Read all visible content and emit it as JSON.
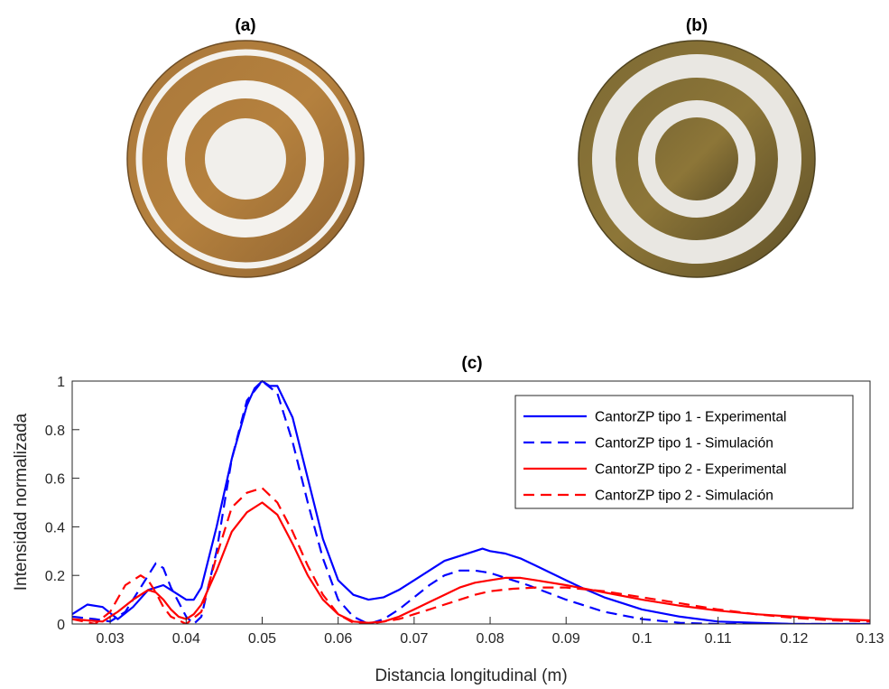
{
  "panels": {
    "a": "(a)",
    "b": "(b)",
    "c": "(c)"
  },
  "photos": [
    {
      "name": "CantorZP tipo 1",
      "metal": "copper",
      "center_open": true
    },
    {
      "name": "CantorZP tipo 2",
      "metal": "brass",
      "center_open": false
    }
  ],
  "chart_data": {
    "type": "line",
    "title": "(c)",
    "xlabel": "Distancia longitudinal (m)",
    "ylabel": "Intensidad normalizada",
    "xlim": [
      0.025,
      0.13
    ],
    "ylim": [
      0,
      1
    ],
    "xticks": [
      "0.03",
      "0.04",
      "0.05",
      "0.06",
      "0.07",
      "0.08",
      "0.09",
      "0.1",
      "0.11",
      "0.12",
      "0.13"
    ],
    "yticks": [
      "0",
      "0.2",
      "0.4",
      "0.6",
      "0.8",
      "1"
    ],
    "grid": false,
    "legend_position": "top-right",
    "series": [
      {
        "name": "CantorZP tipo 1 - Experimental",
        "color": "#0000ff",
        "dash": "solid",
        "x": [
          0.025,
          0.027,
          0.029,
          0.031,
          0.033,
          0.035,
          0.037,
          0.038,
          0.04,
          0.041,
          0.042,
          0.044,
          0.046,
          0.048,
          0.049,
          0.05,
          0.051,
          0.052,
          0.054,
          0.056,
          0.058,
          0.06,
          0.062,
          0.064,
          0.066,
          0.068,
          0.07,
          0.072,
          0.074,
          0.076,
          0.078,
          0.079,
          0.08,
          0.082,
          0.084,
          0.086,
          0.088,
          0.09,
          0.092,
          0.095,
          0.1,
          0.105,
          0.11,
          0.115,
          0.12,
          0.125,
          0.13
        ],
        "y": [
          0.04,
          0.08,
          0.07,
          0.02,
          0.07,
          0.14,
          0.16,
          0.14,
          0.1,
          0.1,
          0.15,
          0.4,
          0.68,
          0.9,
          0.97,
          1.0,
          0.98,
          0.98,
          0.85,
          0.6,
          0.35,
          0.18,
          0.12,
          0.1,
          0.11,
          0.14,
          0.18,
          0.22,
          0.26,
          0.28,
          0.3,
          0.31,
          0.3,
          0.29,
          0.27,
          0.24,
          0.21,
          0.18,
          0.15,
          0.11,
          0.06,
          0.03,
          0.01,
          0.005,
          0.0,
          0.0,
          0.0
        ]
      },
      {
        "name": "CantorZP tipo 1 - Simulación",
        "color": "#0000ff",
        "dash": "dashed",
        "x": [
          0.025,
          0.028,
          0.03,
          0.032,
          0.034,
          0.036,
          0.037,
          0.038,
          0.04,
          0.041,
          0.042,
          0.044,
          0.046,
          0.048,
          0.05,
          0.052,
          0.054,
          0.056,
          0.058,
          0.06,
          0.062,
          0.064,
          0.066,
          0.068,
          0.07,
          0.072,
          0.074,
          0.076,
          0.078,
          0.08,
          0.082,
          0.085,
          0.09,
          0.095,
          0.1,
          0.105,
          0.11,
          0.12,
          0.13
        ],
        "y": [
          0.03,
          0.02,
          0.01,
          0.05,
          0.15,
          0.25,
          0.23,
          0.15,
          0.03,
          0.0,
          0.03,
          0.3,
          0.68,
          0.92,
          1.0,
          0.95,
          0.75,
          0.5,
          0.27,
          0.1,
          0.03,
          0.0,
          0.02,
          0.06,
          0.11,
          0.16,
          0.2,
          0.22,
          0.22,
          0.21,
          0.19,
          0.16,
          0.1,
          0.05,
          0.02,
          0.005,
          0.0,
          0.0,
          0.0
        ]
      },
      {
        "name": "CantorZP tipo 2 - Experimental",
        "color": "#ff0000",
        "dash": "solid",
        "x": [
          0.025,
          0.027,
          0.029,
          0.031,
          0.033,
          0.035,
          0.036,
          0.037,
          0.038,
          0.039,
          0.04,
          0.041,
          0.042,
          0.044,
          0.046,
          0.048,
          0.05,
          0.052,
          0.054,
          0.056,
          0.058,
          0.06,
          0.062,
          0.064,
          0.066,
          0.068,
          0.07,
          0.072,
          0.074,
          0.076,
          0.078,
          0.08,
          0.082,
          0.084,
          0.086,
          0.09,
          0.095,
          0.1,
          0.105,
          0.11,
          0.115,
          0.12,
          0.125,
          0.13
        ],
        "y": [
          0.02,
          0.015,
          0.01,
          0.05,
          0.1,
          0.14,
          0.13,
          0.1,
          0.06,
          0.03,
          0.02,
          0.04,
          0.08,
          0.22,
          0.38,
          0.46,
          0.5,
          0.45,
          0.33,
          0.2,
          0.1,
          0.04,
          0.01,
          0.005,
          0.01,
          0.03,
          0.06,
          0.09,
          0.12,
          0.15,
          0.17,
          0.18,
          0.19,
          0.19,
          0.18,
          0.16,
          0.13,
          0.1,
          0.075,
          0.055,
          0.04,
          0.03,
          0.02,
          0.015
        ]
      },
      {
        "name": "CantorZP tipo 2 - Simulación",
        "color": "#ff0000",
        "dash": "dashed",
        "x": [
          0.025,
          0.028,
          0.03,
          0.032,
          0.034,
          0.035,
          0.036,
          0.037,
          0.038,
          0.04,
          0.042,
          0.044,
          0.046,
          0.048,
          0.05,
          0.052,
          0.054,
          0.056,
          0.058,
          0.06,
          0.062,
          0.064,
          0.066,
          0.068,
          0.07,
          0.072,
          0.075,
          0.078,
          0.08,
          0.083,
          0.086,
          0.09,
          0.095,
          0.1,
          0.105,
          0.11,
          0.115,
          0.12,
          0.125,
          0.13
        ],
        "y": [
          0.02,
          0.0,
          0.05,
          0.16,
          0.2,
          0.18,
          0.13,
          0.07,
          0.03,
          0.0,
          0.05,
          0.28,
          0.48,
          0.54,
          0.56,
          0.5,
          0.38,
          0.24,
          0.12,
          0.04,
          0.005,
          0.0,
          0.01,
          0.02,
          0.04,
          0.06,
          0.09,
          0.12,
          0.135,
          0.145,
          0.15,
          0.15,
          0.135,
          0.11,
          0.085,
          0.06,
          0.04,
          0.025,
          0.015,
          0.01
        ]
      }
    ]
  }
}
